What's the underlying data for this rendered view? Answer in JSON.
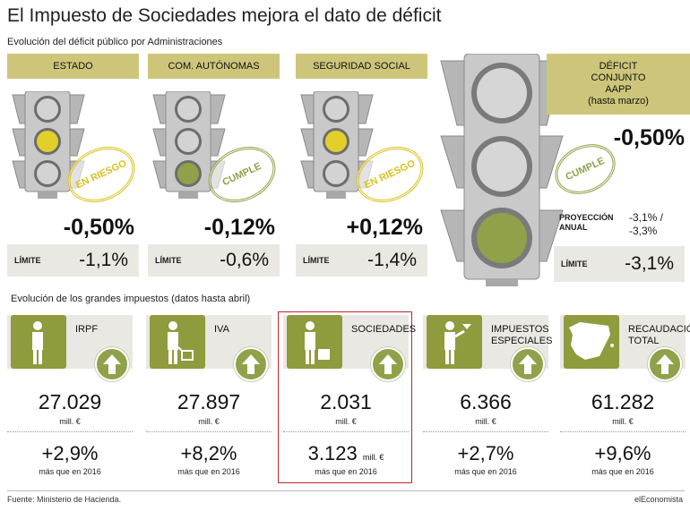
{
  "title": "El Impuesto de Sociedades mejora el dato de déficit",
  "subtitle": "Evolución del déficit público por Administraciones",
  "admins": [
    {
      "label": "ESTADO",
      "value": "-0,50%",
      "limit_label": "LÍMITE",
      "limit": "-1,1%",
      "badge": "EN RIESGO",
      "light": "yellow"
    },
    {
      "label": "COM. AUTÓNOMAS",
      "value": "-0,12%",
      "limit_label": "LÍMITE",
      "limit": "-0,6%",
      "badge": "CUMPLE",
      "light": "green"
    },
    {
      "label": "SEGURIDAD SOCIAL",
      "value": "+0,12%",
      "limit_label": "LÍMITE",
      "limit": "-1,4%",
      "badge": "EN RIESGO",
      "light": "yellow"
    }
  ],
  "total": {
    "label_lines": [
      "DÉFICIT",
      "CONJUNTO",
      "AAPP",
      "(hasta marzo)"
    ],
    "value": "-0,50%",
    "badge": "CUMPLE",
    "projection_label_lines": [
      "PROYECCIÓN",
      "ANUAL"
    ],
    "projection_lines": [
      "-3,1% /",
      "-3,3%"
    ],
    "limit_label": "LÍMITE",
    "limit": "-3,1%"
  },
  "taxes_title": "Evolución de los grandes impuestos (datos hasta abril)",
  "taxes": [
    {
      "name_lines": [
        "IRPF"
      ],
      "icon": "person-icon",
      "value": "27.029",
      "unit": "mill. €",
      "change": "+2,9%",
      "change_note": "más que en 2016",
      "highlight": false
    },
    {
      "name_lines": [
        "IVA"
      ],
      "icon": "person-cart-icon",
      "value": "27.897",
      "unit": "mill. €",
      "change": "+8,2%",
      "change_note": "más que en 2016",
      "highlight": false
    },
    {
      "name_lines": [
        "SOCIEDADES"
      ],
      "icon": "person-briefcase-icon",
      "value": "2.031",
      "unit": "mill. €",
      "change": "3.123",
      "change_unit": "mill. €",
      "change_note": "más que en 2016",
      "highlight": true
    },
    {
      "name_lines": [
        "IMPUESTOS",
        "ESPECIALES"
      ],
      "icon": "person-drink-icon",
      "value": "6.366",
      "unit": "mill. €",
      "change": "+2,7%",
      "change_note": "más que en 2016",
      "highlight": false
    },
    {
      "name_lines": [
        "RECAUDACIÓN",
        "TOTAL"
      ],
      "icon": "spain-map-icon",
      "value": "61.282",
      "unit": "mill. €",
      "change": "+9,6%",
      "change_note": "más que en 2016",
      "highlight": false
    }
  ],
  "source": "Fuente: Ministerio de Hacienda.",
  "brand": "elEconomista",
  "colors": {
    "olive": "#8f9b3d",
    "khaki": "#cdc67a",
    "yellow": "#e2cf2a",
    "green": "#8fa24a",
    "highlight": "#c0262d"
  }
}
